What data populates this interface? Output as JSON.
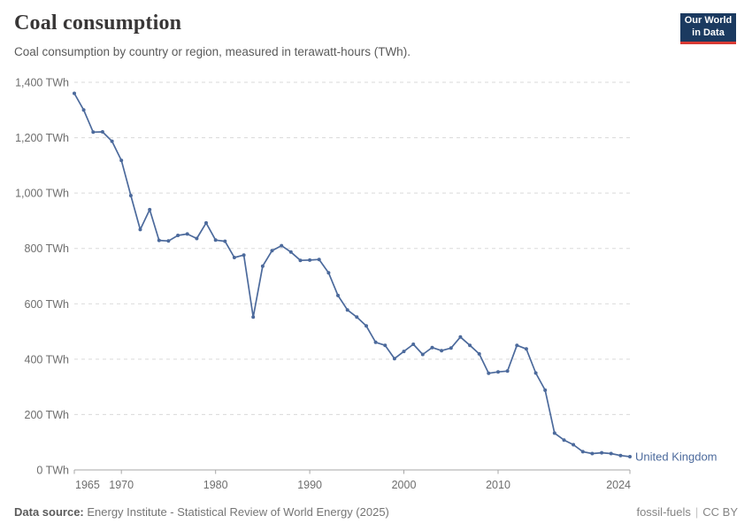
{
  "header": {
    "title": "Coal consumption",
    "subtitle": "Coal consumption by country or region, measured in terawatt-hours (TWh).",
    "logo": {
      "line1": "Our World",
      "line2": "in Data"
    }
  },
  "chart_data": {
    "type": "line",
    "title": "Coal consumption",
    "xlabel": "",
    "ylabel": "",
    "unit": "TWh",
    "xlim": [
      1965,
      2024
    ],
    "ylim": [
      0,
      1400
    ],
    "x_ticks": [
      1965,
      1970,
      1980,
      1990,
      2000,
      2010,
      2024
    ],
    "y_ticks": [
      0,
      200,
      400,
      600,
      800,
      1000,
      1200,
      1400
    ],
    "y_tick_suffix": " TWh",
    "grid": "horizontal-dashed",
    "legend_position": "end-of-line",
    "series": [
      {
        "name": "United Kingdom",
        "color": "#4c6a9c",
        "x": [
          1965,
          1966,
          1967,
          1968,
          1969,
          1970,
          1971,
          1972,
          1973,
          1974,
          1975,
          1976,
          1977,
          1978,
          1979,
          1980,
          1981,
          1982,
          1983,
          1984,
          1985,
          1986,
          1987,
          1988,
          1989,
          1990,
          1991,
          1992,
          1993,
          1994,
          1995,
          1996,
          1997,
          1998,
          1999,
          2000,
          2001,
          2002,
          2003,
          2004,
          2005,
          2006,
          2007,
          2008,
          2009,
          2010,
          2011,
          2012,
          2013,
          2014,
          2015,
          2016,
          2017,
          2018,
          2019,
          2020,
          2021,
          2022,
          2023,
          2024
        ],
        "values": [
          1360,
          1300,
          1220,
          1221,
          1187,
          1118,
          991,
          868,
          940,
          829,
          827,
          847,
          852,
          836,
          892,
          830,
          826,
          767,
          776,
          552,
          736,
          792,
          810,
          787,
          757,
          758,
          760,
          712,
          630,
          578,
          552,
          520,
          461,
          450,
          402,
          428,
          454,
          417,
          442,
          431,
          440,
          480,
          450,
          419,
          349,
          354,
          357,
          450,
          437,
          350,
          288,
          133,
          108,
          91,
          66,
          59,
          62,
          59,
          52,
          48
        ]
      }
    ]
  },
  "footer": {
    "datasource_label": "Data source:",
    "datasource_text": " Energy Institute - Statistical Review of World Energy (2025)",
    "tag": "fossil-fuels",
    "separator": "|",
    "license": "CC BY"
  },
  "colors": {
    "line": "#4c6a9c",
    "series_label": "#4c6a9c",
    "grid": "#dadada",
    "axis": "#a7a7a7",
    "tick_text": "#6e6e6e",
    "logo_bg": "#1b3a60",
    "logo_accent": "#d93a34"
  }
}
